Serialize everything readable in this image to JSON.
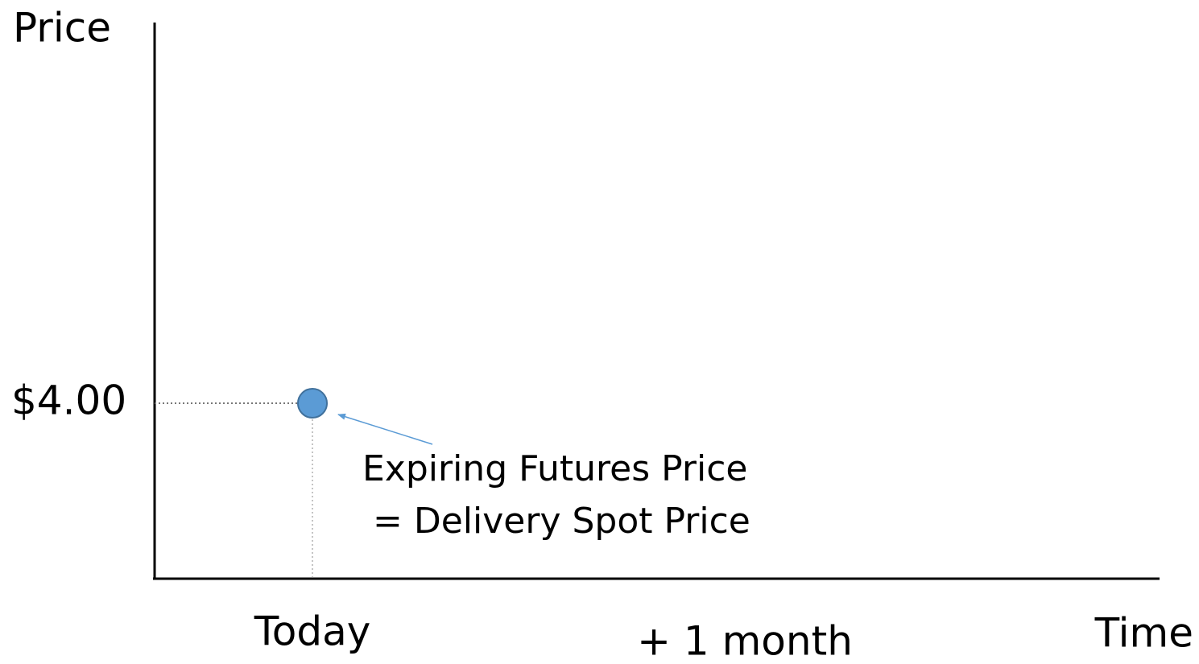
{
  "chart_data": {
    "type": "scatter",
    "y_label": "Price",
    "x_label": "Time",
    "categories": [
      "Today",
      "+ 1 month"
    ],
    "values": [
      4,
      null
    ],
    "color": "#5b9bd5",
    "ylim": [
      0,
      12.68
    ],
    "yticks": [
      {
        "value": 4,
        "label": "$4.00"
      }
    ],
    "annotation": [
      "Expiring Futures Price",
      "= Delivery Spot Price"
    ]
  }
}
